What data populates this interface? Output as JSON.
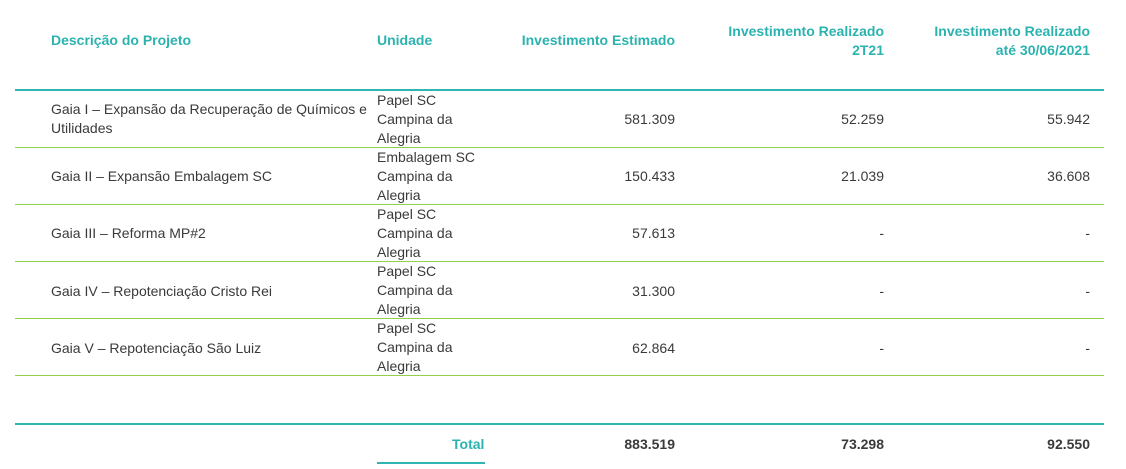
{
  "headers": {
    "project": "Descrição do Projeto",
    "unit": "Unidade",
    "estimated": "Investimento Estimado",
    "realized_q_line1": "Investimento Realizado",
    "realized_q_line2": "2T21",
    "realized_ytd_line1": "Investimento Realizado",
    "realized_ytd_line2": "até 30/06/2021"
  },
  "rows": [
    {
      "project_line1": "Gaia I – Expansão da Recuperação de Químicos e",
      "project_line2": "Utilidades",
      "unit_line1": "Papel SC",
      "unit_line2": "Campina da",
      "unit_line3": "Alegria",
      "estimated": "581.309",
      "realized_q": "52.259",
      "realized_ytd": "55.942"
    },
    {
      "project_line1": "Gaia II – Expansão Embalagem SC",
      "project_line2": "",
      "unit_line1": "Embalagem SC",
      "unit_line2": "Campina da",
      "unit_line3": "Alegria",
      "estimated": "150.433",
      "realized_q": "21.039",
      "realized_ytd": "36.608"
    },
    {
      "project_line1": "Gaia III – Reforma MP#2",
      "project_line2": "",
      "unit_line1": "Papel SC",
      "unit_line2": "Campina da",
      "unit_line3": "Alegria",
      "estimated": "57.613",
      "realized_q": "-",
      "realized_ytd": "-"
    },
    {
      "project_line1": "Gaia IV – Repotenciação Cristo Rei",
      "project_line2": "",
      "unit_line1": "Papel SC",
      "unit_line2": "Campina da",
      "unit_line3": "Alegria",
      "estimated": "31.300",
      "realized_q": "-",
      "realized_ytd": "-"
    },
    {
      "project_line1": "Gaia V – Repotenciação São Luiz",
      "project_line2": "",
      "unit_line1": "Papel SC",
      "unit_line2": "Campina da",
      "unit_line3": "Alegria",
      "estimated": "62.864",
      "realized_q": "-",
      "realized_ytd": "-"
    }
  ],
  "total": {
    "label": "Total",
    "estimated": "883.519",
    "realized_q": "73.298",
    "realized_ytd": "92.550"
  },
  "colors": {
    "header_teal": "#2bb3b0",
    "rule_green": "#93d14b",
    "text": "#3a3a3a"
  }
}
